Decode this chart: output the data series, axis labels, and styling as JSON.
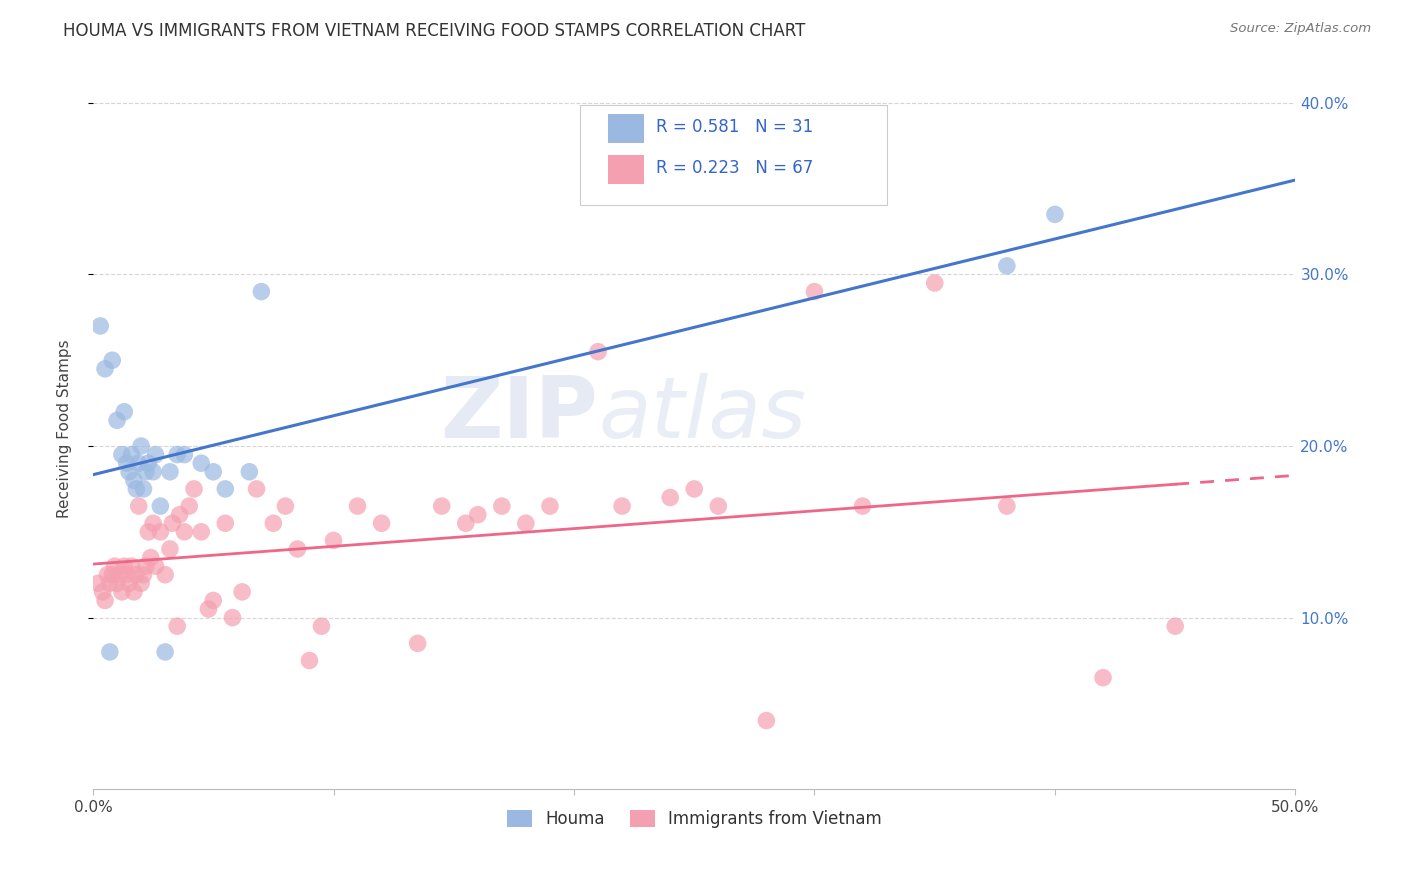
{
  "title": "HOUMA VS IMMIGRANTS FROM VIETNAM RECEIVING FOOD STAMPS CORRELATION CHART",
  "source": "Source: ZipAtlas.com",
  "ylabel": "Receiving Food Stamps",
  "xlim": [
    0.0,
    0.5
  ],
  "ylim": [
    0.0,
    0.42
  ],
  "y_ticks_right": [
    0.1,
    0.2,
    0.3,
    0.4
  ],
  "y_tick_labels_right": [
    "10.0%",
    "20.0%",
    "30.0%",
    "40.0%"
  ],
  "legend_label1": "Houma",
  "legend_label2": "Immigrants from Vietnam",
  "R1": 0.581,
  "N1": 31,
  "R2": 0.223,
  "N2": 67,
  "color_blue": "#9BB9E0",
  "color_pink": "#F4A0B0",
  "color_line_blue": "#4477CC",
  "color_line_pink": "#EE6688",
  "houma_x": [
    0.003,
    0.005,
    0.007,
    0.008,
    0.01,
    0.012,
    0.013,
    0.014,
    0.015,
    0.016,
    0.017,
    0.018,
    0.019,
    0.02,
    0.021,
    0.022,
    0.023,
    0.025,
    0.026,
    0.028,
    0.03,
    0.032,
    0.035,
    0.038,
    0.045,
    0.05,
    0.055,
    0.065,
    0.07,
    0.38,
    0.4
  ],
  "houma_y": [
    0.27,
    0.245,
    0.08,
    0.25,
    0.215,
    0.195,
    0.22,
    0.19,
    0.185,
    0.195,
    0.18,
    0.175,
    0.19,
    0.2,
    0.175,
    0.185,
    0.19,
    0.185,
    0.195,
    0.165,
    0.08,
    0.185,
    0.195,
    0.195,
    0.19,
    0.185,
    0.175,
    0.185,
    0.29,
    0.305,
    0.335
  ],
  "vietnam_x": [
    0.002,
    0.004,
    0.005,
    0.006,
    0.007,
    0.008,
    0.009,
    0.01,
    0.011,
    0.012,
    0.013,
    0.014,
    0.015,
    0.016,
    0.017,
    0.018,
    0.019,
    0.02,
    0.021,
    0.022,
    0.023,
    0.024,
    0.025,
    0.026,
    0.028,
    0.03,
    0.032,
    0.033,
    0.035,
    0.036,
    0.038,
    0.04,
    0.042,
    0.045,
    0.048,
    0.05,
    0.055,
    0.058,
    0.062,
    0.068,
    0.075,
    0.08,
    0.085,
    0.09,
    0.095,
    0.1,
    0.11,
    0.12,
    0.135,
    0.145,
    0.155,
    0.16,
    0.17,
    0.18,
    0.19,
    0.21,
    0.22,
    0.24,
    0.25,
    0.26,
    0.28,
    0.3,
    0.32,
    0.35,
    0.38,
    0.42,
    0.45
  ],
  "vietnam_y": [
    0.12,
    0.115,
    0.11,
    0.125,
    0.12,
    0.125,
    0.13,
    0.12,
    0.125,
    0.115,
    0.13,
    0.125,
    0.12,
    0.13,
    0.115,
    0.125,
    0.165,
    0.12,
    0.125,
    0.13,
    0.15,
    0.135,
    0.155,
    0.13,
    0.15,
    0.125,
    0.14,
    0.155,
    0.095,
    0.16,
    0.15,
    0.165,
    0.175,
    0.15,
    0.105,
    0.11,
    0.155,
    0.1,
    0.115,
    0.175,
    0.155,
    0.165,
    0.14,
    0.075,
    0.095,
    0.145,
    0.165,
    0.155,
    0.085,
    0.165,
    0.155,
    0.16,
    0.165,
    0.155,
    0.165,
    0.255,
    0.165,
    0.17,
    0.175,
    0.165,
    0.04,
    0.29,
    0.165,
    0.295,
    0.165,
    0.065,
    0.095
  ]
}
